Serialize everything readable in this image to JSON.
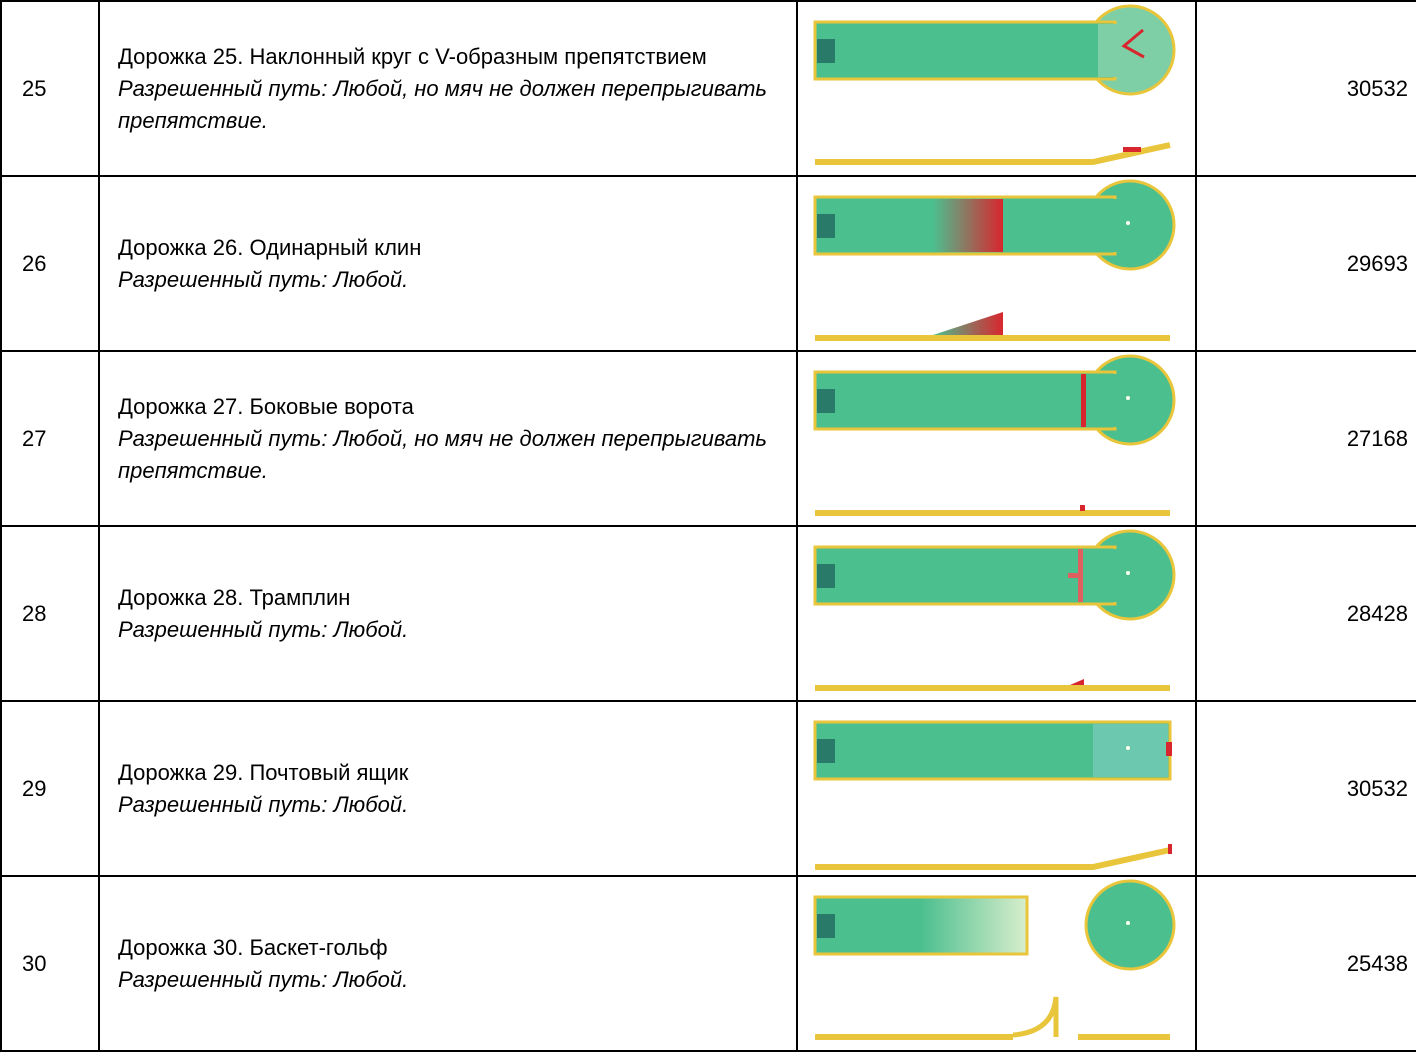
{
  "table": {
    "rows": [
      {
        "number": "25",
        "title": "Дорожка 25. Наклонный круг с V-образным препятствием",
        "path": "Разрешенный путь: Любой, но мяч не должен перепрыгивать препятствие.",
        "code": "30532"
      },
      {
        "number": "26",
        "title": "Дорожка 26. Одинарный клин",
        "path": "Разрешенный путь: Любой.",
        "code": "29693"
      },
      {
        "number": "27",
        "title": "Дорожка 27. Боковые ворота",
        "path": "Разрешенный путь: Любой, но мяч не должен перепрыгивать препятствие.",
        "code": "27168"
      },
      {
        "number": "28",
        "title": "Дорожка 28. Трамплин",
        "path": "Разрешенный путь: Любой.",
        "code": "28428"
      },
      {
        "number": "29",
        "title": "Дорожка 29. Почтовый ящик",
        "path": "Разрешенный путь: Любой.",
        "code": "30532"
      },
      {
        "number": "30",
        "title": "Дорожка 30. Баскет-гольф",
        "path": "Разрешенный путь: Любой.",
        "code": "25438"
      }
    ]
  }
}
